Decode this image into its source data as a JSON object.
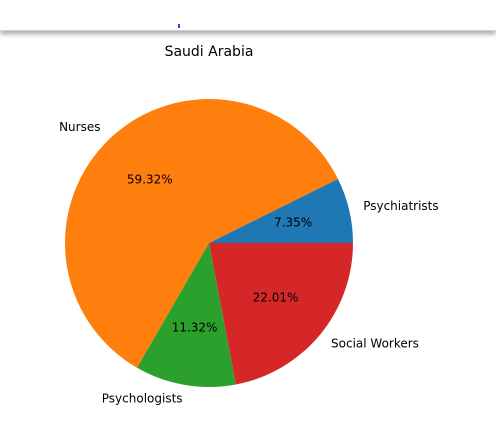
{
  "chart_data": {
    "type": "pie",
    "title": "Saudi Arabia",
    "slices": [
      {
        "label": "Psychiatrists",
        "value": 7.35,
        "pct_label": "7.35%",
        "color": "#1f77b4"
      },
      {
        "label": "Nurses",
        "value": 59.32,
        "pct_label": "59.32%",
        "color": "#ff7f0e"
      },
      {
        "label": "Psychologists",
        "value": 11.32,
        "pct_label": "11.32%",
        "color": "#2ca02c"
      },
      {
        "label": "Social Workers",
        "value": 22.01,
        "pct_label": "22.01%",
        "color": "#d62728"
      }
    ]
  }
}
